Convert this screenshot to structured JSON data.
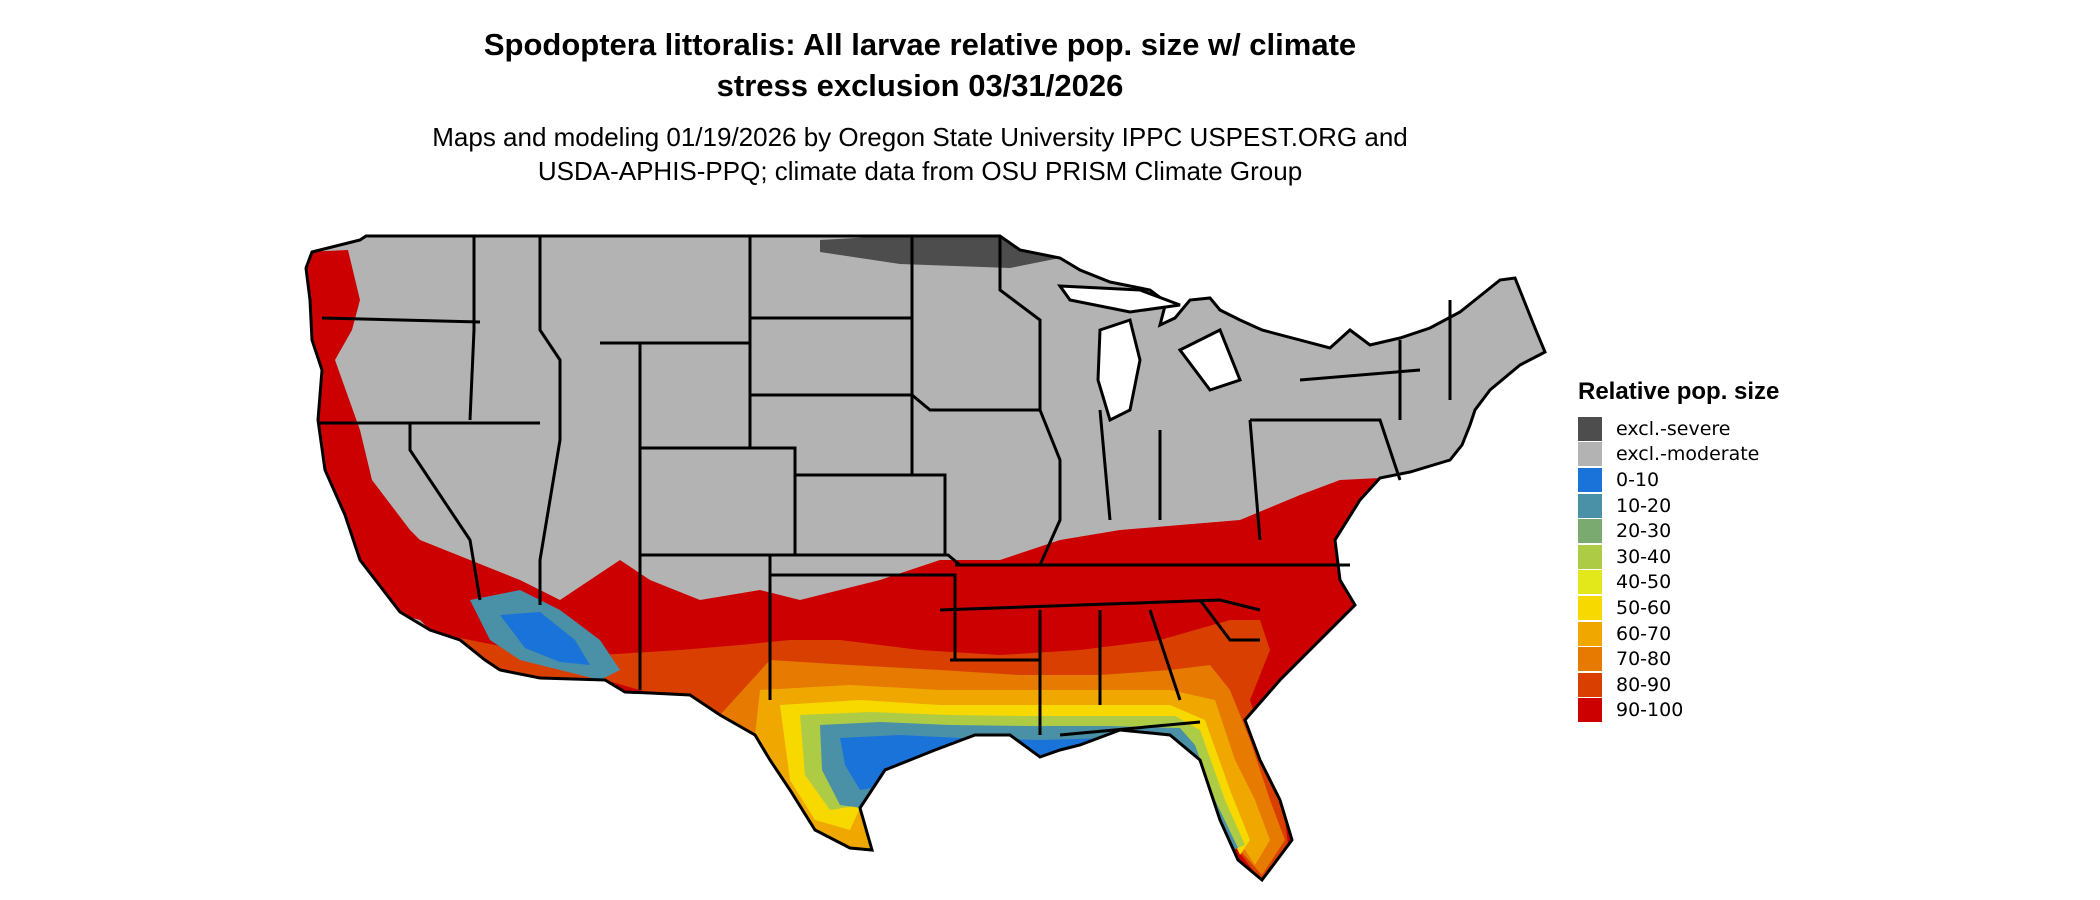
{
  "title_line1": "Spodoptera littoralis: All larvae relative pop. size w/ climate",
  "title_line2": "stress exclusion 03/31/2026",
  "subtitle_line1": "Maps and modeling 01/19/2026 by Oregon State University IPPC USPEST.ORG and",
  "subtitle_line2": "USDA-APHIS-PPQ; climate data from OSU PRISM Climate Group",
  "legend": {
    "title": "Relative pop. size",
    "items": [
      {
        "label": "excl.-severe",
        "color": "#4d4d4d"
      },
      {
        "label": "excl.-moderate",
        "color": "#b3b3b3"
      },
      {
        "label": "0-10",
        "color": "#1a73d9"
      },
      {
        "label": "10-20",
        "color": "#4a90a6"
      },
      {
        "label": "20-30",
        "color": "#7aaa70"
      },
      {
        "label": "30-40",
        "color": "#aecb46"
      },
      {
        "label": "40-50",
        "color": "#e3e81a"
      },
      {
        "label": "50-60",
        "color": "#f7d900"
      },
      {
        "label": "60-70",
        "color": "#f0a800"
      },
      {
        "label": "70-80",
        "color": "#e77a00"
      },
      {
        "label": "80-90",
        "color": "#d94000"
      },
      {
        "label": "90-100",
        "color": "#cc0000"
      }
    ]
  }
}
